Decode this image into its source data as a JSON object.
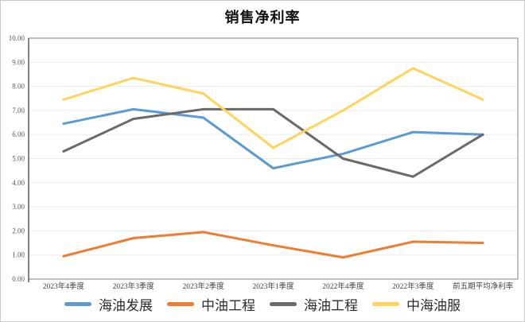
{
  "title": "销售净利率",
  "chart_data": {
    "type": "line",
    "title": "销售净利率",
    "categories": [
      "2023年4季度",
      "2023年3季度",
      "2023年2季度",
      "2023年1季度",
      "2022年4季度",
      "2022年3季度",
      "前五期平均净利率"
    ],
    "series": [
      {
        "name": "海油发展",
        "color": "#5B9BD5",
        "values": [
          6.45,
          7.05,
          6.7,
          4.6,
          5.2,
          6.1,
          6.0
        ]
      },
      {
        "name": "中油工程",
        "color": "#ED7D31",
        "values": [
          0.95,
          1.7,
          1.95,
          1.4,
          0.9,
          1.55,
          1.5
        ]
      },
      {
        "name": "海油工程",
        "color": "#6A6A6A",
        "values": [
          5.3,
          6.65,
          7.05,
          7.05,
          5.0,
          4.25,
          6.0
        ]
      },
      {
        "name": "中海油服",
        "color": "#FFD35C",
        "values": [
          7.45,
          8.35,
          7.7,
          5.45,
          7.0,
          8.75,
          7.45
        ]
      }
    ],
    "xlabel": "",
    "ylabel": "",
    "ylim": [
      0,
      10
    ],
    "ytick_step": 1,
    "ytick_decimals": 2,
    "grid": true,
    "legend_position": "bottom",
    "styles": {
      "gridline_color": "#ebebeb",
      "plot_border_color": "#7f7f7f",
      "axis_line_color": "#595959",
      "ytick_label_color": "#595959",
      "xtick_label_color": "#3f3f3f",
      "line_width": 3
    }
  }
}
